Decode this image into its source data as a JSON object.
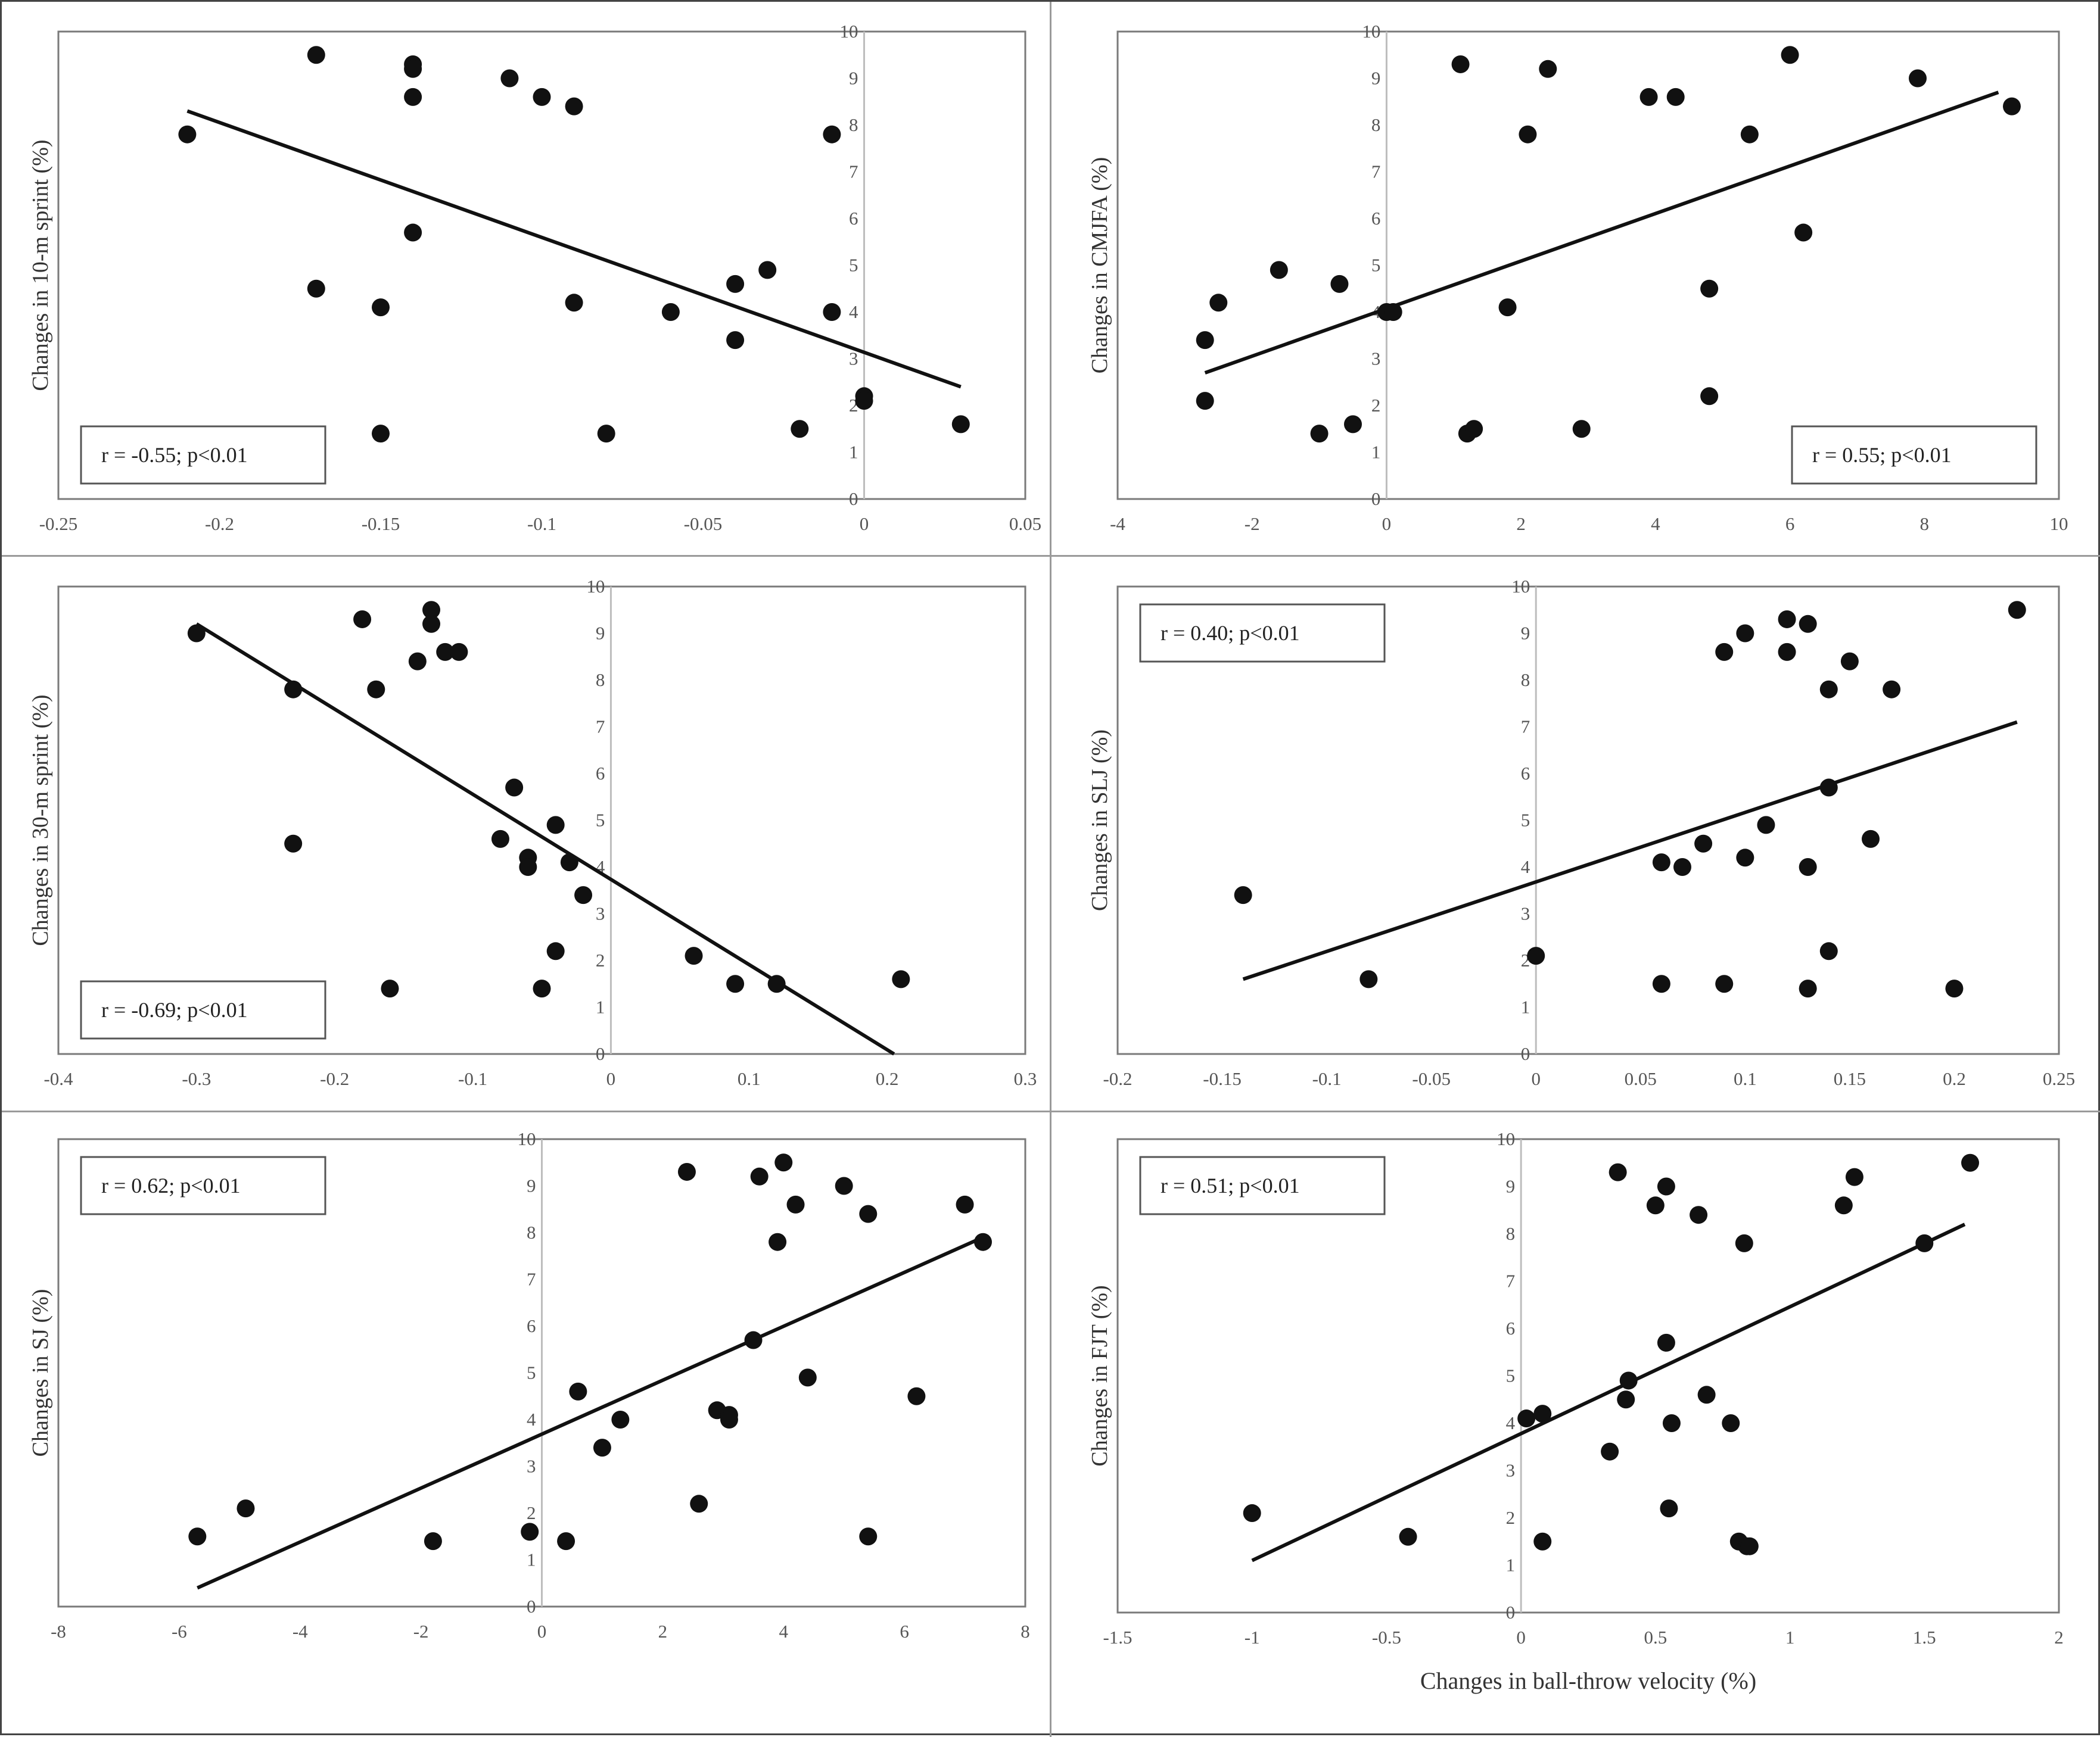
{
  "chart_data": [
    {
      "type": "scatter",
      "ylabel": "Changes in 10-m sprint (%)",
      "xlabel": "",
      "annotation": "r = -0.55; p<0.01",
      "annotation_position": "bottom-left",
      "xlim": [
        -0.25,
        0.05
      ],
      "ylim": [
        0,
        10
      ],
      "xticks": [
        -0.25,
        -0.2,
        -0.15,
        -0.1,
        -0.05,
        0,
        0.05
      ],
      "xtick_labels": [
        "-0.25",
        "-0.2",
        "-0.15",
        "-0.1",
        "-0.05",
        "0",
        "0.05"
      ],
      "yticks": [
        0,
        1,
        2,
        3,
        4,
        5,
        6,
        7,
        8,
        9,
        10
      ],
      "ytick_labels": [
        "0",
        "1",
        "2",
        "3",
        "4",
        "5",
        "6",
        "7",
        "8",
        "9",
        "10"
      ],
      "trendline": [
        [
          -0.21,
          8.3
        ],
        [
          0.03,
          2.4
        ]
      ],
      "points": [
        [
          -0.21,
          7.8
        ],
        [
          -0.17,
          9.5
        ],
        [
          -0.17,
          4.5
        ],
        [
          -0.15,
          4.1
        ],
        [
          -0.15,
          1.4
        ],
        [
          -0.14,
          9.3
        ],
        [
          -0.14,
          9.2
        ],
        [
          -0.14,
          8.6
        ],
        [
          -0.14,
          5.7
        ],
        [
          -0.11,
          9.0
        ],
        [
          -0.1,
          8.6
        ],
        [
          -0.09,
          8.4
        ],
        [
          -0.09,
          4.2
        ],
        [
          -0.08,
          1.4
        ],
        [
          -0.06,
          4.0
        ],
        [
          -0.04,
          4.6
        ],
        [
          -0.04,
          3.4
        ],
        [
          -0.03,
          4.9
        ],
        [
          -0.02,
          1.5
        ],
        [
          -0.01,
          7.8
        ],
        [
          -0.01,
          4.0
        ],
        [
          0.0,
          2.2
        ],
        [
          0.0,
          2.1
        ],
        [
          0.03,
          1.6
        ]
      ]
    },
    {
      "type": "scatter",
      "ylabel": "Changes in CMJFA (%)",
      "xlabel": "",
      "annotation": "r = 0.55; p<0.01",
      "annotation_position": "bottom-right",
      "xlim": [
        -4,
        10
      ],
      "ylim": [
        0,
        10
      ],
      "xticks": [
        -4,
        -2,
        0,
        2,
        4,
        6,
        8,
        10
      ],
      "xtick_labels": [
        "-4",
        "-2",
        "0",
        "2",
        "4",
        "6",
        "8",
        "10"
      ],
      "yticks": [
        0,
        1,
        2,
        3,
        4,
        5,
        6,
        7,
        8,
        9,
        10
      ],
      "ytick_labels": [
        "0",
        "1",
        "2",
        "3",
        "4",
        "5",
        "6",
        "7",
        "8",
        "9",
        "10"
      ],
      "trendline": [
        [
          -2.7,
          2.7
        ],
        [
          9.1,
          8.7
        ]
      ],
      "points": [
        [
          -2.7,
          3.4
        ],
        [
          -2.7,
          2.1
        ],
        [
          -2.5,
          4.2
        ],
        [
          -1.6,
          4.9
        ],
        [
          -1.0,
          1.4
        ],
        [
          -0.7,
          4.6
        ],
        [
          -0.5,
          1.6
        ],
        [
          0.0,
          4.0
        ],
        [
          0.1,
          4.0
        ],
        [
          1.1,
          9.3
        ],
        [
          1.2,
          1.4
        ],
        [
          1.3,
          1.5
        ],
        [
          1.8,
          4.1
        ],
        [
          2.1,
          7.8
        ],
        [
          2.4,
          9.2
        ],
        [
          2.9,
          1.5
        ],
        [
          3.9,
          8.6
        ],
        [
          4.3,
          8.6
        ],
        [
          4.8,
          4.5
        ],
        [
          4.8,
          2.2
        ],
        [
          5.4,
          7.8
        ],
        [
          6.0,
          9.5
        ],
        [
          6.2,
          5.7
        ],
        [
          7.9,
          9.0
        ],
        [
          9.3,
          8.4
        ]
      ]
    },
    {
      "type": "scatter",
      "ylabel": "Changes in 30-m sprint (%)",
      "xlabel": "",
      "annotation": "r = -0.69; p<0.01",
      "annotation_position": "bottom-left",
      "xlim": [
        -0.4,
        0.3
      ],
      "ylim": [
        0,
        10
      ],
      "xticks": [
        -0.4,
        -0.3,
        -0.2,
        -0.1,
        0,
        0.1,
        0.2,
        0.3
      ],
      "xtick_labels": [
        "-0.4",
        "-0.3",
        "-0.2",
        "-0.1",
        "0",
        "0.1",
        "0.2",
        "0.3"
      ],
      "yticks": [
        0,
        1,
        2,
        3,
        4,
        5,
        6,
        7,
        8,
        9,
        10
      ],
      "ytick_labels": [
        "0",
        "1",
        "2",
        "3",
        "4",
        "5",
        "6",
        "7",
        "8",
        "9",
        "10"
      ],
      "trendline": [
        [
          -0.3,
          9.2
        ],
        [
          0.205,
          0.0
        ]
      ],
      "points": [
        [
          -0.3,
          9.0
        ],
        [
          -0.23,
          7.8
        ],
        [
          -0.23,
          4.5
        ],
        [
          -0.18,
          9.3
        ],
        [
          -0.17,
          7.8
        ],
        [
          -0.16,
          1.4
        ],
        [
          -0.14,
          8.4
        ],
        [
          -0.13,
          9.5
        ],
        [
          -0.13,
          9.2
        ],
        [
          -0.12,
          8.6
        ],
        [
          -0.11,
          8.6
        ],
        [
          -0.07,
          5.7
        ],
        [
          -0.08,
          4.6
        ],
        [
          -0.06,
          4.2
        ],
        [
          -0.06,
          4.0
        ],
        [
          -0.04,
          4.9
        ],
        [
          -0.03,
          4.1
        ],
        [
          -0.02,
          3.4
        ],
        [
          -0.04,
          2.2
        ],
        [
          -0.05,
          1.4
        ],
        [
          0.06,
          2.1
        ],
        [
          0.09,
          1.5
        ],
        [
          0.12,
          1.5
        ],
        [
          0.21,
          1.6
        ]
      ]
    },
    {
      "type": "scatter",
      "ylabel": "Changes in SLJ (%)",
      "xlabel": "",
      "annotation": "r = 0.40; p<0.01",
      "annotation_position": "top-left",
      "xlim": [
        -0.2,
        0.25
      ],
      "ylim": [
        0,
        10
      ],
      "xticks": [
        -0.2,
        -0.15,
        -0.1,
        -0.05,
        0,
        0.05,
        0.1,
        0.15,
        0.2,
        0.25
      ],
      "xtick_labels": [
        "-0.2",
        "-0.15",
        "-0.1",
        "-0.05",
        "0",
        "0.05",
        "0.1",
        "0.15",
        "0.2",
        "0.25"
      ],
      "yticks": [
        0,
        1,
        2,
        3,
        4,
        5,
        6,
        7,
        8,
        9,
        10
      ],
      "ytick_labels": [
        "0",
        "1",
        "2",
        "3",
        "4",
        "5",
        "6",
        "7",
        "8",
        "9",
        "10"
      ],
      "trendline": [
        [
          -0.14,
          1.6
        ],
        [
          0.23,
          7.1
        ]
      ],
      "points": [
        [
          -0.14,
          3.4
        ],
        [
          -0.08,
          1.6
        ],
        [
          0.0,
          2.1
        ],
        [
          0.06,
          4.1
        ],
        [
          0.06,
          1.5
        ],
        [
          0.07,
          4.0
        ],
        [
          0.08,
          4.5
        ],
        [
          0.09,
          8.6
        ],
        [
          0.09,
          1.5
        ],
        [
          0.1,
          9.0
        ],
        [
          0.1,
          4.2
        ],
        [
          0.11,
          4.9
        ],
        [
          0.12,
          9.3
        ],
        [
          0.12,
          8.6
        ],
        [
          0.13,
          9.2
        ],
        [
          0.13,
          4.0
        ],
        [
          0.13,
          1.4
        ],
        [
          0.14,
          7.8
        ],
        [
          0.14,
          5.7
        ],
        [
          0.14,
          2.2
        ],
        [
          0.15,
          8.4
        ],
        [
          0.16,
          4.6
        ],
        [
          0.17,
          7.8
        ],
        [
          0.2,
          1.4
        ],
        [
          0.23,
          9.5
        ]
      ]
    },
    {
      "type": "scatter",
      "ylabel": "Changes in SJ (%)",
      "xlabel": "",
      "annotation": "r = 0.62; p<0.01",
      "annotation_position": "top-left",
      "xlim": [
        -8,
        8
      ],
      "ylim": [
        0,
        10
      ],
      "xticks": [
        -8,
        -6,
        -4,
        -2,
        0,
        2,
        4,
        6,
        8
      ],
      "xtick_labels": [
        "-8",
        "-6",
        "-4",
        "-2",
        "0",
        "2",
        "4",
        "6",
        "8"
      ],
      "yticks": [
        0,
        1,
        2,
        3,
        4,
        5,
        6,
        7,
        8,
        9,
        10
      ],
      "ytick_labels": [
        "0",
        "1",
        "2",
        "3",
        "4",
        "5",
        "6",
        "7",
        "8",
        "9",
        "10"
      ],
      "trendline": [
        [
          -5.7,
          0.4
        ],
        [
          7.3,
          7.9
        ]
      ],
      "points": [
        [
          -5.7,
          1.5
        ],
        [
          -4.9,
          2.1
        ],
        [
          -1.8,
          1.4
        ],
        [
          -0.2,
          1.6
        ],
        [
          0.4,
          1.4
        ],
        [
          0.6,
          4.6
        ],
        [
          1.0,
          3.4
        ],
        [
          1.3,
          4.0
        ],
        [
          2.4,
          9.3
        ],
        [
          2.6,
          2.2
        ],
        [
          2.9,
          4.2
        ],
        [
          3.1,
          4.1
        ],
        [
          3.1,
          4.0
        ],
        [
          3.5,
          5.7
        ],
        [
          3.6,
          9.2
        ],
        [
          3.9,
          7.8
        ],
        [
          4.0,
          9.5
        ],
        [
          4.2,
          8.6
        ],
        [
          4.4,
          4.9
        ],
        [
          5.0,
          9.0
        ],
        [
          5.4,
          8.4
        ],
        [
          5.4,
          1.5
        ],
        [
          6.2,
          4.5
        ],
        [
          7.0,
          8.6
        ],
        [
          7.3,
          7.8
        ]
      ]
    },
    {
      "type": "scatter",
      "ylabel": "Changes in FJT (%)",
      "xlabel": "Changes in ball-throw velocity (%)",
      "annotation": "r = 0.51; p<0.01",
      "annotation_position": "top-left",
      "xlim": [
        -1.5,
        2
      ],
      "ylim": [
        0,
        10
      ],
      "xticks": [
        -1.5,
        -1,
        -0.5,
        0,
        0.5,
        1,
        1.5,
        2
      ],
      "xtick_labels": [
        "-1.5",
        "-1",
        "-0.5",
        "0",
        "0.5",
        "1",
        "1.5",
        "2"
      ],
      "yticks": [
        0,
        1,
        2,
        3,
        4,
        5,
        6,
        7,
        8,
        9,
        10
      ],
      "ytick_labels": [
        "0",
        "1",
        "2",
        "3",
        "4",
        "5",
        "6",
        "7",
        "8",
        "9",
        "10"
      ],
      "trendline": [
        [
          -1.0,
          1.1
        ],
        [
          1.65,
          8.2
        ]
      ],
      "points": [
        [
          -1.0,
          2.1
        ],
        [
          -0.42,
          1.6
        ],
        [
          0.02,
          4.1
        ],
        [
          0.08,
          4.2
        ],
        [
          0.08,
          1.5
        ],
        [
          0.33,
          3.4
        ],
        [
          0.36,
          9.3
        ],
        [
          0.39,
          4.5
        ],
        [
          0.4,
          4.9
        ],
        [
          0.5,
          8.6
        ],
        [
          0.54,
          9.0
        ],
        [
          0.54,
          5.7
        ],
        [
          0.55,
          2.2
        ],
        [
          0.56,
          4.0
        ],
        [
          0.66,
          8.4
        ],
        [
          0.69,
          4.6
        ],
        [
          0.78,
          4.0
        ],
        [
          0.81,
          1.5
        ],
        [
          0.83,
          7.8
        ],
        [
          0.84,
          1.4
        ],
        [
          0.85,
          1.4
        ],
        [
          1.2,
          8.6
        ],
        [
          1.24,
          9.2
        ],
        [
          1.5,
          7.8
        ],
        [
          1.67,
          9.5
        ]
      ]
    }
  ]
}
